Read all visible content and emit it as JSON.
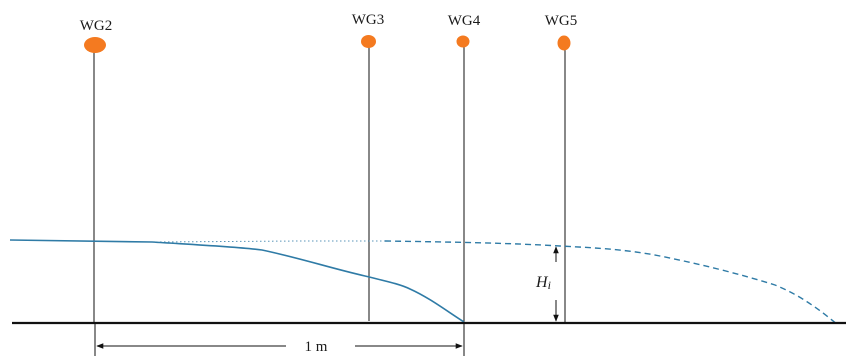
{
  "gauges": [
    {
      "id": "wg2",
      "label": "WG2"
    },
    {
      "id": "wg3",
      "label": "WG3"
    },
    {
      "id": "wg4",
      "label": "WG4"
    },
    {
      "id": "wg5",
      "label": "WG5"
    }
  ],
  "dimension": {
    "label": "1 m"
  },
  "height_marker": {
    "symbol": "H",
    "subscript": "i"
  },
  "colors": {
    "sensor": "#f47a20",
    "water": "#2f7ba6",
    "line": "#111111"
  }
}
